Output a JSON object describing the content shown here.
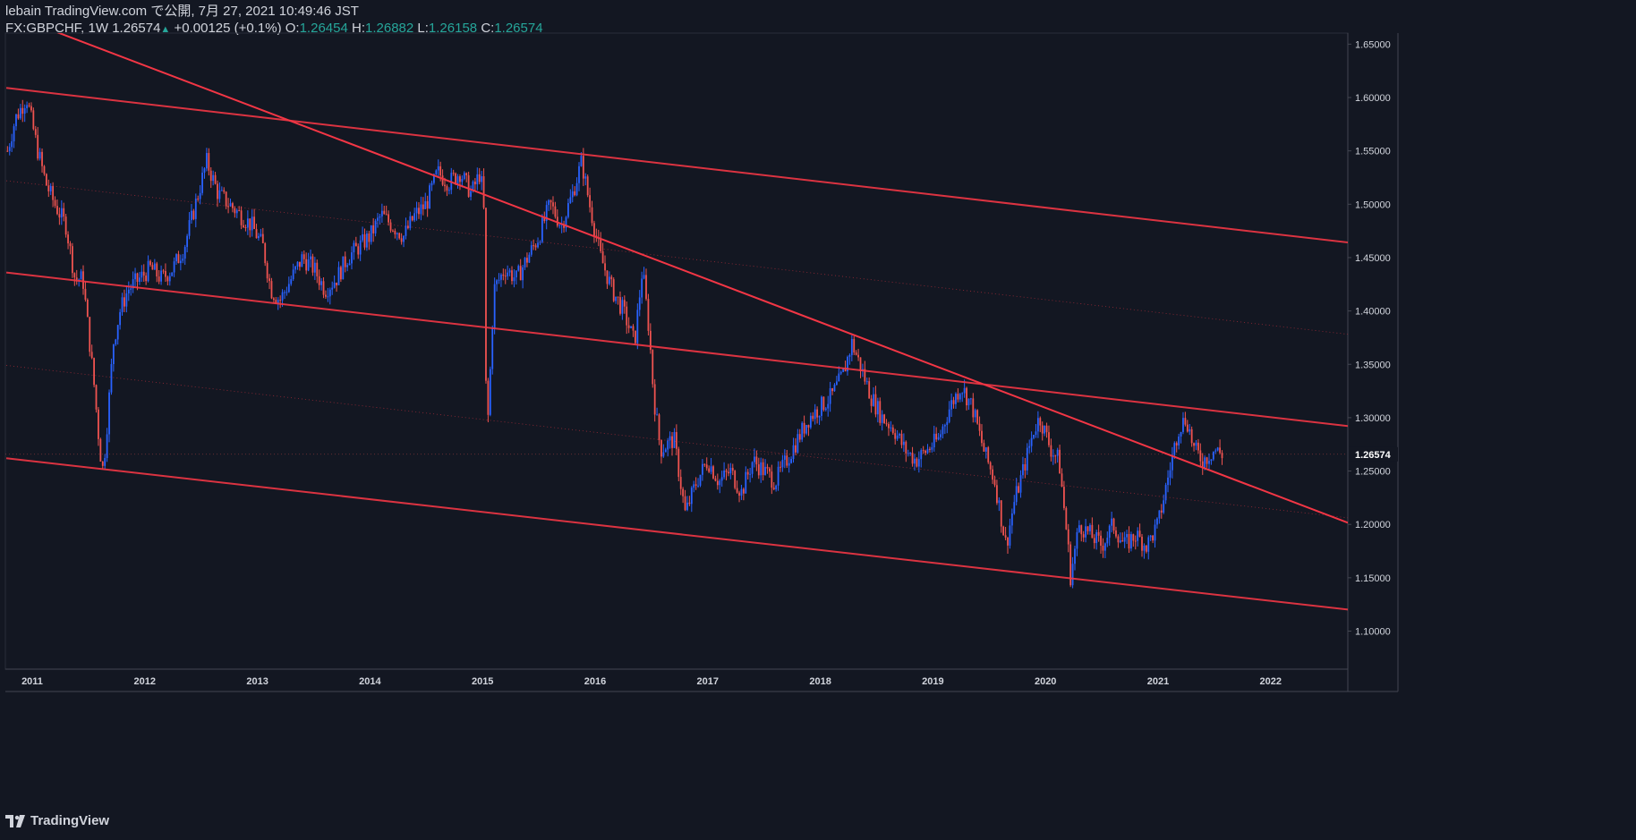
{
  "header": {
    "published": "lebain TradingView.com で公開, 7月 27, 2021 10:49:46 JST",
    "symbol": "FX:GBPCHF, 1W",
    "last": "1.26574",
    "up_arrow": "▲",
    "change": "+0.00125 (+0.1%)",
    "o_label": "O:",
    "o_value": "1.26454",
    "h_label": "H:",
    "h_value": "1.26882",
    "l_label": "L:",
    "l_value": "1.26158",
    "c_label": "C:",
    "c_value": "1.26574"
  },
  "footer": {
    "brand": "TradingView"
  },
  "chart_data": {
    "type": "candlestick",
    "symbol": "FX:GBPCHF",
    "interval": "1W",
    "x_ticks": [
      "2011",
      "2012",
      "2013",
      "2014",
      "2015",
      "2016",
      "2017",
      "2018",
      "2019",
      "2020",
      "2021",
      "2022"
    ],
    "y_ticks": [
      "1.65000",
      "1.60000",
      "1.55000",
      "1.50000",
      "1.45000",
      "1.40000",
      "1.35000",
      "1.30000",
      "1.25000",
      "1.20000",
      "1.15000",
      "1.10000"
    ],
    "ylim": [
      1.06,
      1.66
    ],
    "xlim": [
      2010.77,
      2022.7
    ],
    "last_price": 1.26574,
    "last_price_label": "1.26574",
    "price_path": [
      [
        2010.78,
        1.55
      ],
      [
        2010.85,
        1.58
      ],
      [
        2010.95,
        1.6
      ],
      [
        2011.05,
        1.55
      ],
      [
        2011.12,
        1.52
      ],
      [
        2011.2,
        1.5
      ],
      [
        2011.3,
        1.48
      ],
      [
        2011.38,
        1.43
      ],
      [
        2011.45,
        1.43
      ],
      [
        2011.5,
        1.38
      ],
      [
        2011.55,
        1.33
      ],
      [
        2011.6,
        1.27
      ],
      [
        2011.63,
        1.25
      ],
      [
        2011.67,
        1.3
      ],
      [
        2011.72,
        1.37
      ],
      [
        2011.78,
        1.4
      ],
      [
        2011.85,
        1.42
      ],
      [
        2011.95,
        1.43
      ],
      [
        2012.05,
        1.44
      ],
      [
        2012.15,
        1.43
      ],
      [
        2012.25,
        1.44
      ],
      [
        2012.35,
        1.46
      ],
      [
        2012.45,
        1.5
      ],
      [
        2012.55,
        1.54
      ],
      [
        2012.65,
        1.51
      ],
      [
        2012.75,
        1.5
      ],
      [
        2012.85,
        1.49
      ],
      [
        2012.95,
        1.48
      ],
      [
        2013.05,
        1.46
      ],
      [
        2013.12,
        1.42
      ],
      [
        2013.2,
        1.41
      ],
      [
        2013.3,
        1.43
      ],
      [
        2013.4,
        1.45
      ],
      [
        2013.5,
        1.44
      ],
      [
        2013.6,
        1.42
      ],
      [
        2013.7,
        1.43
      ],
      [
        2013.8,
        1.45
      ],
      [
        2013.9,
        1.46
      ],
      [
        2014.0,
        1.47
      ],
      [
        2014.1,
        1.49
      ],
      [
        2014.2,
        1.48
      ],
      [
        2014.3,
        1.47
      ],
      [
        2014.4,
        1.49
      ],
      [
        2014.5,
        1.5
      ],
      [
        2014.6,
        1.53
      ],
      [
        2014.7,
        1.52
      ],
      [
        2014.8,
        1.53
      ],
      [
        2014.9,
        1.51
      ],
      [
        2014.98,
        1.53
      ],
      [
        2015.01,
        1.5
      ],
      [
        2015.03,
        1.33
      ],
      [
        2015.05,
        1.3
      ],
      [
        2015.1,
        1.42
      ],
      [
        2015.2,
        1.44
      ],
      [
        2015.3,
        1.43
      ],
      [
        2015.4,
        1.45
      ],
      [
        2015.5,
        1.47
      ],
      [
        2015.6,
        1.5
      ],
      [
        2015.7,
        1.48
      ],
      [
        2015.8,
        1.51
      ],
      [
        2015.88,
        1.54
      ],
      [
        2015.95,
        1.5
      ],
      [
        2016.05,
        1.45
      ],
      [
        2016.15,
        1.42
      ],
      [
        2016.25,
        1.4
      ],
      [
        2016.35,
        1.37
      ],
      [
        2016.42,
        1.44
      ],
      [
        2016.48,
        1.38
      ],
      [
        2016.52,
        1.32
      ],
      [
        2016.58,
        1.27
      ],
      [
        2016.7,
        1.28
      ],
      [
        2016.8,
        1.21
      ],
      [
        2016.9,
        1.24
      ],
      [
        2017.0,
        1.26
      ],
      [
        2017.1,
        1.24
      ],
      [
        2017.2,
        1.25
      ],
      [
        2017.3,
        1.23
      ],
      [
        2017.4,
        1.26
      ],
      [
        2017.5,
        1.25
      ],
      [
        2017.6,
        1.24
      ],
      [
        2017.7,
        1.26
      ],
      [
        2017.8,
        1.28
      ],
      [
        2017.9,
        1.3
      ],
      [
        2018.0,
        1.31
      ],
      [
        2018.1,
        1.32
      ],
      [
        2018.2,
        1.34
      ],
      [
        2018.28,
        1.37
      ],
      [
        2018.35,
        1.35
      ],
      [
        2018.45,
        1.32
      ],
      [
        2018.55,
        1.3
      ],
      [
        2018.65,
        1.29
      ],
      [
        2018.75,
        1.27
      ],
      [
        2018.85,
        1.26
      ],
      [
        2018.95,
        1.27
      ],
      [
        2019.05,
        1.28
      ],
      [
        2019.15,
        1.31
      ],
      [
        2019.25,
        1.33
      ],
      [
        2019.35,
        1.31
      ],
      [
        2019.45,
        1.27
      ],
      [
        2019.55,
        1.24
      ],
      [
        2019.65,
        1.18
      ],
      [
        2019.72,
        1.22
      ],
      [
        2019.8,
        1.25
      ],
      [
        2019.9,
        1.29
      ],
      [
        2019.95,
        1.3
      ],
      [
        2020.05,
        1.27
      ],
      [
        2020.12,
        1.26
      ],
      [
        2020.2,
        1.18
      ],
      [
        2020.22,
        1.15
      ],
      [
        2020.3,
        1.2
      ],
      [
        2020.4,
        1.19
      ],
      [
        2020.5,
        1.18
      ],
      [
        2020.6,
        1.2
      ],
      [
        2020.7,
        1.18
      ],
      [
        2020.8,
        1.19
      ],
      [
        2020.9,
        1.18
      ],
      [
        2021.0,
        1.2
      ],
      [
        2021.1,
        1.25
      ],
      [
        2021.18,
        1.29
      ],
      [
        2021.25,
        1.3
      ],
      [
        2021.32,
        1.27
      ],
      [
        2021.4,
        1.26
      ],
      [
        2021.5,
        1.27
      ],
      [
        2021.57,
        1.2657
      ]
    ],
    "trendlines": [
      {
        "name": "Steep descending trendline",
        "points": [
          [
            2011.15,
            1.664
          ],
          [
            2022.7,
            1.201
          ]
        ],
        "style": "solid"
      },
      {
        "name": "Channel upper line",
        "points": [
          [
            2010.77,
            1.609
          ],
          [
            2022.7,
            1.464
          ]
        ],
        "style": "solid"
      },
      {
        "name": "Channel middle-upper line",
        "points": [
          [
            2010.77,
            1.436
          ],
          [
            2022.7,
            1.292
          ]
        ],
        "style": "solid"
      },
      {
        "name": "Channel lower line",
        "points": [
          [
            2010.77,
            1.262
          ],
          [
            2022.7,
            1.12
          ]
        ],
        "style": "solid"
      },
      {
        "name": "Dotted midline A",
        "points": [
          [
            2010.77,
            1.522
          ],
          [
            2022.7,
            1.378
          ]
        ],
        "style": "dotted"
      },
      {
        "name": "Dotted midline B",
        "points": [
          [
            2010.77,
            1.349
          ],
          [
            2022.7,
            1.206
          ]
        ],
        "style": "dotted"
      }
    ],
    "up_color": "#2962ff",
    "down_color": "#ef5350",
    "line_color": "#f23645"
  }
}
